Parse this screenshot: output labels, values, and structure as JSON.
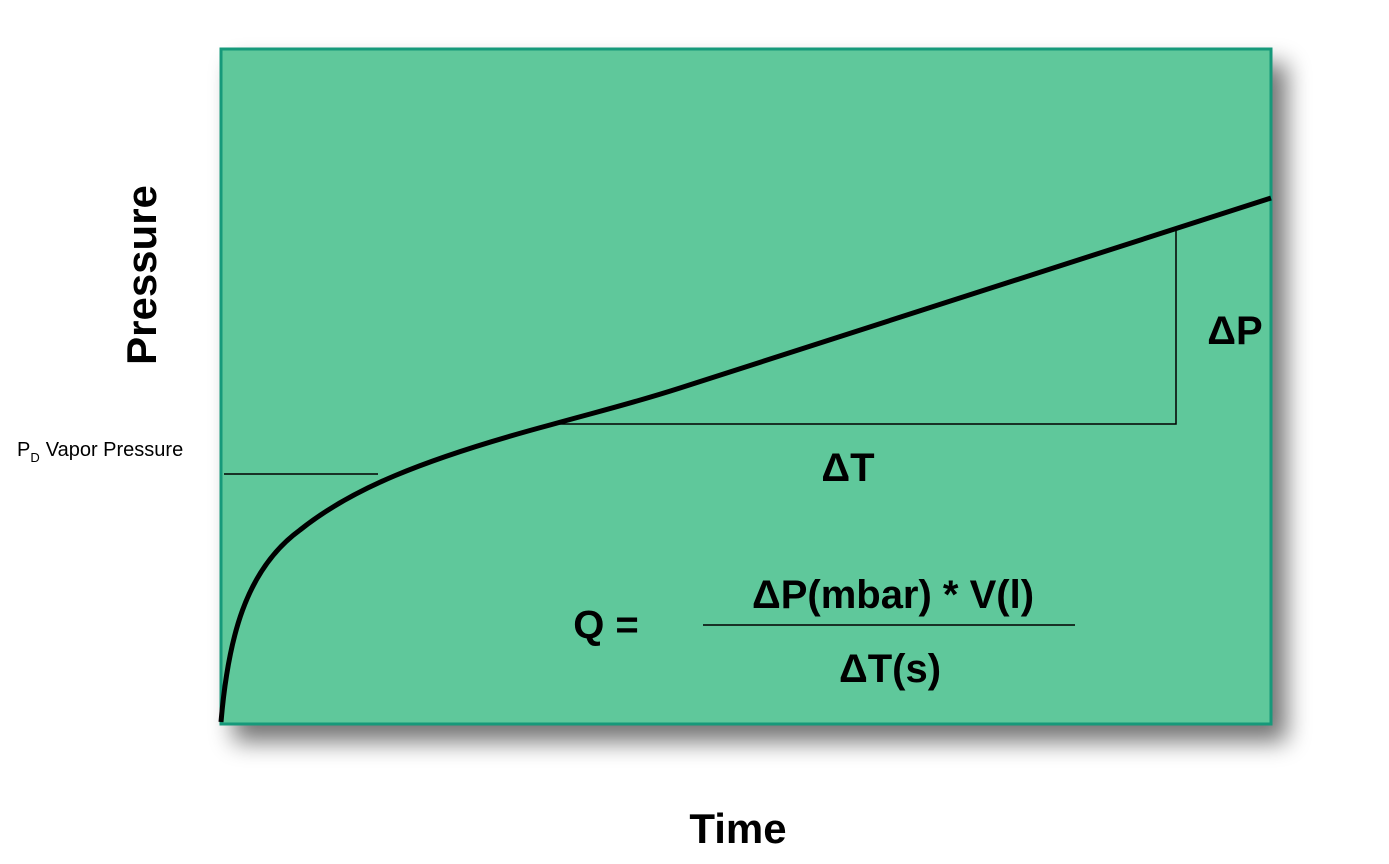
{
  "axes": {
    "y_label": "Pressure",
    "x_label": "Time"
  },
  "annotations": {
    "vapor_pressure": {
      "symbol": "P",
      "subscript": "D",
      "label": "Vapor Pressure"
    },
    "delta_p": "ΔP",
    "delta_t": "ΔT"
  },
  "formula": {
    "lhs": "Q =",
    "numerator": "ΔP(mbar) * V(l)",
    "denominator": "ΔT(s)"
  }
}
